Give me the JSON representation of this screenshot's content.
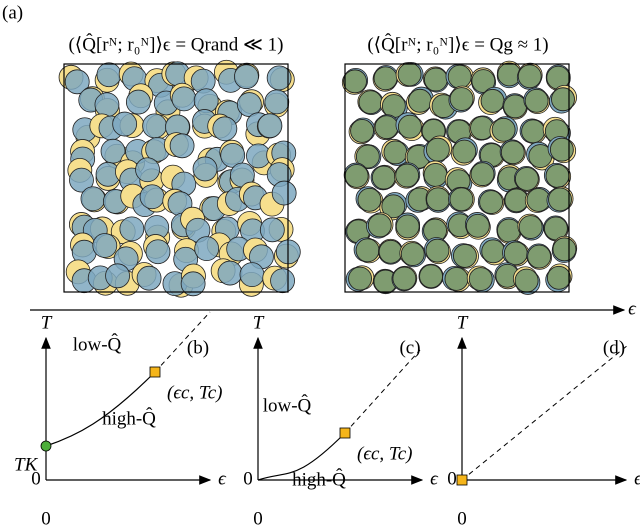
{
  "figure": {
    "panel_a": {
      "tag": "(a)",
      "left_caption": "(⟨Q̂[rᴺ; r₀ᴺ]⟩ϵ = Qrand ≪ 1)",
      "right_caption": "(⟨Q̂[rᴺ; r₀ᴺ]⟩ϵ = Qg ≈ 1)",
      "axis_label": "ϵ"
    },
    "panels": [
      {
        "tag": "(b)",
        "y_label": "T",
        "x_label": "ϵ",
        "origin_y": "0",
        "origin_x": "0",
        "low": "low-Q̂",
        "high": "high-Q̂",
        "critical": "(ϵc, Tc)",
        "tk": "TK"
      },
      {
        "tag": "(c)",
        "y_label": "T",
        "x_label": "ϵ",
        "origin_y": "0",
        "origin_x": "0",
        "low": "low-Q̂",
        "high": "high-Q̂",
        "critical": "(ϵc, Tc)"
      },
      {
        "tag": "(d)",
        "y_label": "T",
        "x_label": "ϵ",
        "origin_y": "0",
        "origin_x": "0"
      }
    ]
  }
}
